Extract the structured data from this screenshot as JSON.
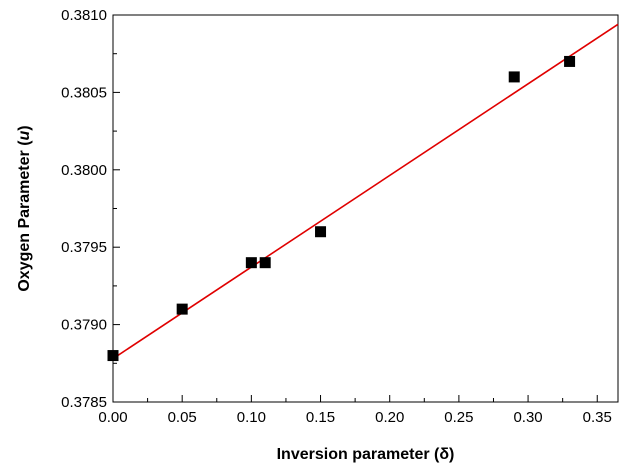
{
  "chart_data": {
    "type": "scatter",
    "xlabel": "Inversion parameter (δ)",
    "ylabel_prefix": "Oxygen Parameter (",
    "ylabel_var": "u",
    "ylabel_suffix": ")",
    "xlim": [
      0.0,
      0.365
    ],
    "ylim": [
      0.3785,
      0.381
    ],
    "x_ticks": [
      0.0,
      0.05,
      0.1,
      0.15,
      0.2,
      0.25,
      0.3,
      0.35
    ],
    "x_tick_labels": [
      "0.00",
      "0.05",
      "0.10",
      "0.15",
      "0.20",
      "0.25",
      "0.30",
      "0.35"
    ],
    "y_ticks": [
      0.3785,
      0.379,
      0.3795,
      0.38,
      0.3805,
      0.381
    ],
    "y_tick_labels": [
      "0.3785",
      "0.3790",
      "0.3795",
      "0.3800",
      "0.3805",
      "0.3810"
    ],
    "grid": false,
    "series": [
      {
        "type": "scatter",
        "marker": "square",
        "color": "#000000",
        "x": [
          0.0,
          0.05,
          0.1,
          0.11,
          0.15,
          0.29,
          0.33
        ],
        "y": [
          0.3788,
          0.3791,
          0.3794,
          0.3794,
          0.3796,
          0.3806,
          0.3807
        ]
      },
      {
        "type": "line",
        "color": "#e00000",
        "x": [
          0.0,
          0.365
        ],
        "y": [
          0.37878,
          0.38094
        ]
      }
    ]
  }
}
